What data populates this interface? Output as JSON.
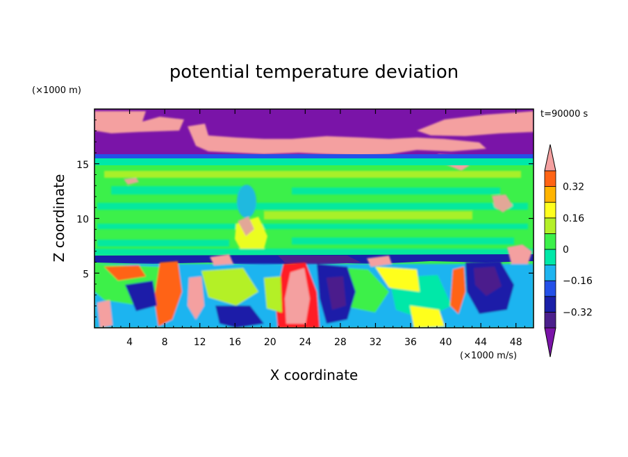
{
  "chart_data": {
    "type": "heatmap",
    "title": "potential temperature deviation",
    "xlabel": "X coordinate",
    "ylabel": "Z coordinate",
    "x_unit": "(×1000 m/s)",
    "y_unit": "(×1000 m)",
    "time_label": "t=90000 s",
    "xlim": [
      0,
      50
    ],
    "ylim": [
      0,
      20
    ],
    "x_ticks": [
      "4",
      "8",
      "12",
      "16",
      "20",
      "24",
      "28",
      "32",
      "36",
      "40",
      "44",
      "48"
    ],
    "x_tick_values": [
      4,
      8,
      12,
      16,
      20,
      24,
      28,
      32,
      36,
      40,
      44,
      48
    ],
    "y_ticks": [
      "5",
      "10",
      "15"
    ],
    "y_tick_values": [
      5,
      10,
      15
    ],
    "colorbar": {
      "levels": [
        -0.4,
        -0.32,
        -0.24,
        -0.16,
        -0.08,
        0,
        0.08,
        0.16,
        0.24,
        0.32,
        0.4
      ],
      "labels": [
        "−0.32",
        "−0.16",
        "0",
        "0.16",
        "0.32"
      ],
      "label_values": [
        -0.32,
        -0.16,
        0,
        0.16,
        0.32
      ],
      "colors": [
        "#4b1f8c",
        "#1a1fa8",
        "#2450e8",
        "#1eb4f0",
        "#00e8a8",
        "#3cf04a",
        "#b4f028",
        "#ffff1e",
        "#ffb400",
        "#ff6414",
        "#ff1e28"
      ],
      "under_color": "#7a14a8",
      "over_color": "#f4a0a0"
    }
  }
}
